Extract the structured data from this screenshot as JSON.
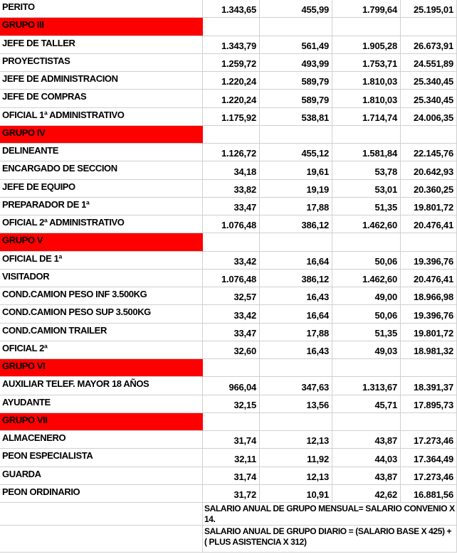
{
  "colors": {
    "group_header_bg": "#ff0000",
    "gridline": "#d0d0d0",
    "text": "#000000"
  },
  "table": {
    "rows": [
      {
        "type": "item",
        "label": "PERITO",
        "values": [
          "1.343,65",
          "455,99",
          "1.799,64",
          "25.195,01"
        ]
      },
      {
        "type": "group",
        "label": "GRUPO III",
        "values": [
          "",
          "",
          "",
          ""
        ]
      },
      {
        "type": "item",
        "label": "JEFE DE TALLER",
        "values": [
          "1.343,79",
          "561,49",
          "1.905,28",
          "26.673,91"
        ]
      },
      {
        "type": "item",
        "label": "PROYECTISTAS",
        "values": [
          "1.259,72",
          "493,99",
          "1.753,71",
          "24.551,89"
        ]
      },
      {
        "type": "item",
        "label": "JEFE DE ADMINISTRACION",
        "values": [
          "1.220,24",
          "589,79",
          "1.810,03",
          "25.340,45"
        ]
      },
      {
        "type": "item",
        "label": "JEFE DE COMPRAS",
        "values": [
          "1.220,24",
          "589,79",
          "1.810,03",
          "25.340,45"
        ]
      },
      {
        "type": "item",
        "label": "OFICIAL 1ª ADMINISTRATIVO",
        "values": [
          "1.175,92",
          "538,81",
          "1.714,74",
          "24.006,35"
        ]
      },
      {
        "type": "group",
        "label": "GRUPO IV",
        "values": [
          "",
          "",
          "",
          ""
        ]
      },
      {
        "type": "item",
        "label": "DELINEANTE",
        "values": [
          "1.126,72",
          "455,12",
          "1.581,84",
          "22.145,76"
        ]
      },
      {
        "type": "item",
        "label": "ENCARGADO DE SECCION",
        "values": [
          "34,18",
          "19,61",
          "53,78",
          "20.642,93"
        ]
      },
      {
        "type": "item",
        "label": "JEFE DE EQUIPO",
        "values": [
          "33,82",
          "19,19",
          "53,01",
          "20.360,25"
        ]
      },
      {
        "type": "item",
        "label": "PREPARADOR DE 1ª",
        "values": [
          "33,47",
          "17,88",
          "51,35",
          "19.801,72"
        ]
      },
      {
        "type": "item",
        "label": "OFICIAL 2ª ADMINISTRATIVO",
        "values": [
          "1.076,48",
          "386,12",
          "1.462,60",
          "20.476,41"
        ]
      },
      {
        "type": "group",
        "label": "GRUPO V",
        "values": [
          "",
          "",
          "",
          ""
        ]
      },
      {
        "type": "item",
        "label": "OFICIAL DE 1ª",
        "values": [
          "33,42",
          "16,64",
          "50,06",
          "19.396,76"
        ]
      },
      {
        "type": "item",
        "label": "VISITADOR",
        "values": [
          "1.076,48",
          "386,12",
          "1.462,60",
          "20.476,41"
        ]
      },
      {
        "type": "item",
        "label": "COND.CAMION PESO INF 3.500KG",
        "values": [
          "32,57",
          "16,43",
          "49,00",
          "18.966,98"
        ]
      },
      {
        "type": "item",
        "label": "COND.CAMION PESO SUP 3.500KG",
        "values": [
          "33,42",
          "16,64",
          "50,06",
          "19.396,76"
        ]
      },
      {
        "type": "item",
        "label": "COND.CAMION TRAILER",
        "values": [
          "33,47",
          "17,88",
          "51,35",
          "19.801,72"
        ]
      },
      {
        "type": "item",
        "label": "OFICIAL 2ª",
        "values": [
          "32,60",
          "16,43",
          "49,03",
          "18.981,32"
        ]
      },
      {
        "type": "group",
        "label": "GRUPO VI",
        "values": [
          "",
          "",
          "",
          ""
        ]
      },
      {
        "type": "item",
        "label": "AUXILIAR TELEF. MAYOR 18 AÑOS",
        "values": [
          "966,04",
          "347,63",
          "1.313,67",
          "18.391,37"
        ]
      },
      {
        "type": "item",
        "label": "AYUDANTE",
        "values": [
          "32,15",
          "13,56",
          "45,71",
          "17.895,73"
        ]
      },
      {
        "type": "group",
        "label": "GRUPO VII",
        "values": [
          "",
          "",
          "",
          ""
        ]
      },
      {
        "type": "item",
        "label": "ALMACENERO",
        "values": [
          "31,74",
          "12,13",
          "43,87",
          "17.273,46"
        ]
      },
      {
        "type": "item",
        "label": "PEON ESPECIALISTA",
        "values": [
          "32,11",
          "11,92",
          "44,03",
          "17.364,49"
        ]
      },
      {
        "type": "item",
        "label": "GUARDA",
        "values": [
          "31,74",
          "12,13",
          "43,87",
          "17.273,46"
        ]
      },
      {
        "type": "item",
        "label": "PEON ORDINARIO",
        "values": [
          "31,72",
          "10,91",
          "42,62",
          "16.881,56"
        ]
      }
    ],
    "footnotes": [
      "SALARIO ANUAL DE GRUPO MENSUAL= SALARIO CONVENIO X 14.",
      "SALARIO ANUAL DE GRUPO DIARIO = (SALARIO BASE X 425) + ( PLUS ASISTENCIA X 312)"
    ]
  }
}
